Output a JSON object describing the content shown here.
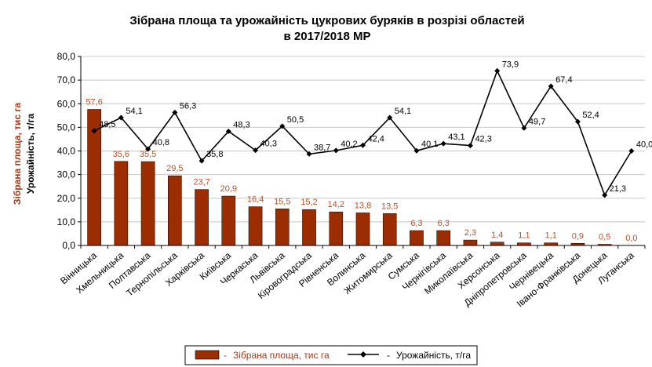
{
  "chart_data": {
    "type": "bar+line",
    "title": [
      "Зібрана площа та урожайність цукрових буряків в розрізі областей",
      "в 2017/2018 МР"
    ],
    "ylabel_area": "Зібрана площа, тис га",
    "ylabel_yield": "Урожайність, т/га",
    "ylim": [
      0,
      80
    ],
    "ytick_step": 10,
    "yticks": [
      "0,0",
      "10,0",
      "20,0",
      "30,0",
      "40,0",
      "50,0",
      "60,0",
      "70,0",
      "80,0"
    ],
    "categories": [
      "Вінницька",
      "Хмельницька",
      "Полтавська",
      "Тернопільська",
      "Харківська",
      "Київська",
      "Черкаська",
      "Львівська",
      "Кіровоградська",
      "Рівненська",
      "Волинська",
      "Житомирська",
      "Сумська",
      "Чернігівська",
      "Миколаївська",
      "Херсонська",
      "Дніпропетровська",
      "Чернівецька",
      "Івано-Франківська",
      "Донецька",
      "Луганська"
    ],
    "series": [
      {
        "name": "Зібрана площа, тис га",
        "kind": "bar",
        "color": "#9c2d00",
        "values": [
          57.6,
          35.6,
          35.5,
          29.5,
          23.7,
          20.9,
          16.4,
          15.5,
          15.2,
          14.2,
          13.8,
          13.5,
          6.3,
          6.3,
          2.3,
          1.4,
          1.1,
          1.1,
          0.9,
          0.5,
          0.0
        ],
        "labels": [
          "57,6",
          "35,6",
          "35,5",
          "29,5",
          "23,7",
          "20,9",
          "16,4",
          "15,5",
          "15,2",
          "14,2",
          "13,8",
          "13,5",
          "6,3",
          "6,3",
          "2,3",
          "1,4",
          "1,1",
          "1,1",
          "0,9",
          "0,5",
          "0,0"
        ]
      },
      {
        "name": "Урожайність, т/га",
        "kind": "line",
        "color": "#000000",
        "values": [
          48.5,
          54.1,
          40.8,
          56.3,
          35.8,
          48.3,
          40.3,
          50.5,
          38.7,
          40.2,
          42.4,
          54.1,
          40.1,
          43.1,
          42.3,
          73.9,
          49.7,
          67.4,
          52.4,
          21.3,
          40.0
        ],
        "labels": [
          "48,5",
          "54,1",
          "40,8",
          "56,3",
          "35,8",
          "48,3",
          "40,3",
          "50,5",
          "38,7",
          "40,2",
          "42,4",
          "54,1",
          "40,1",
          "43,1",
          "42,3",
          "73,9",
          "49,7",
          "67,4",
          "52,4",
          "21,3",
          "40,0"
        ]
      }
    ],
    "legend": {
      "position": "bottom",
      "area_label": "Зібрана площа, тис га",
      "yield_label": "Урожайність, т/га"
    }
  }
}
